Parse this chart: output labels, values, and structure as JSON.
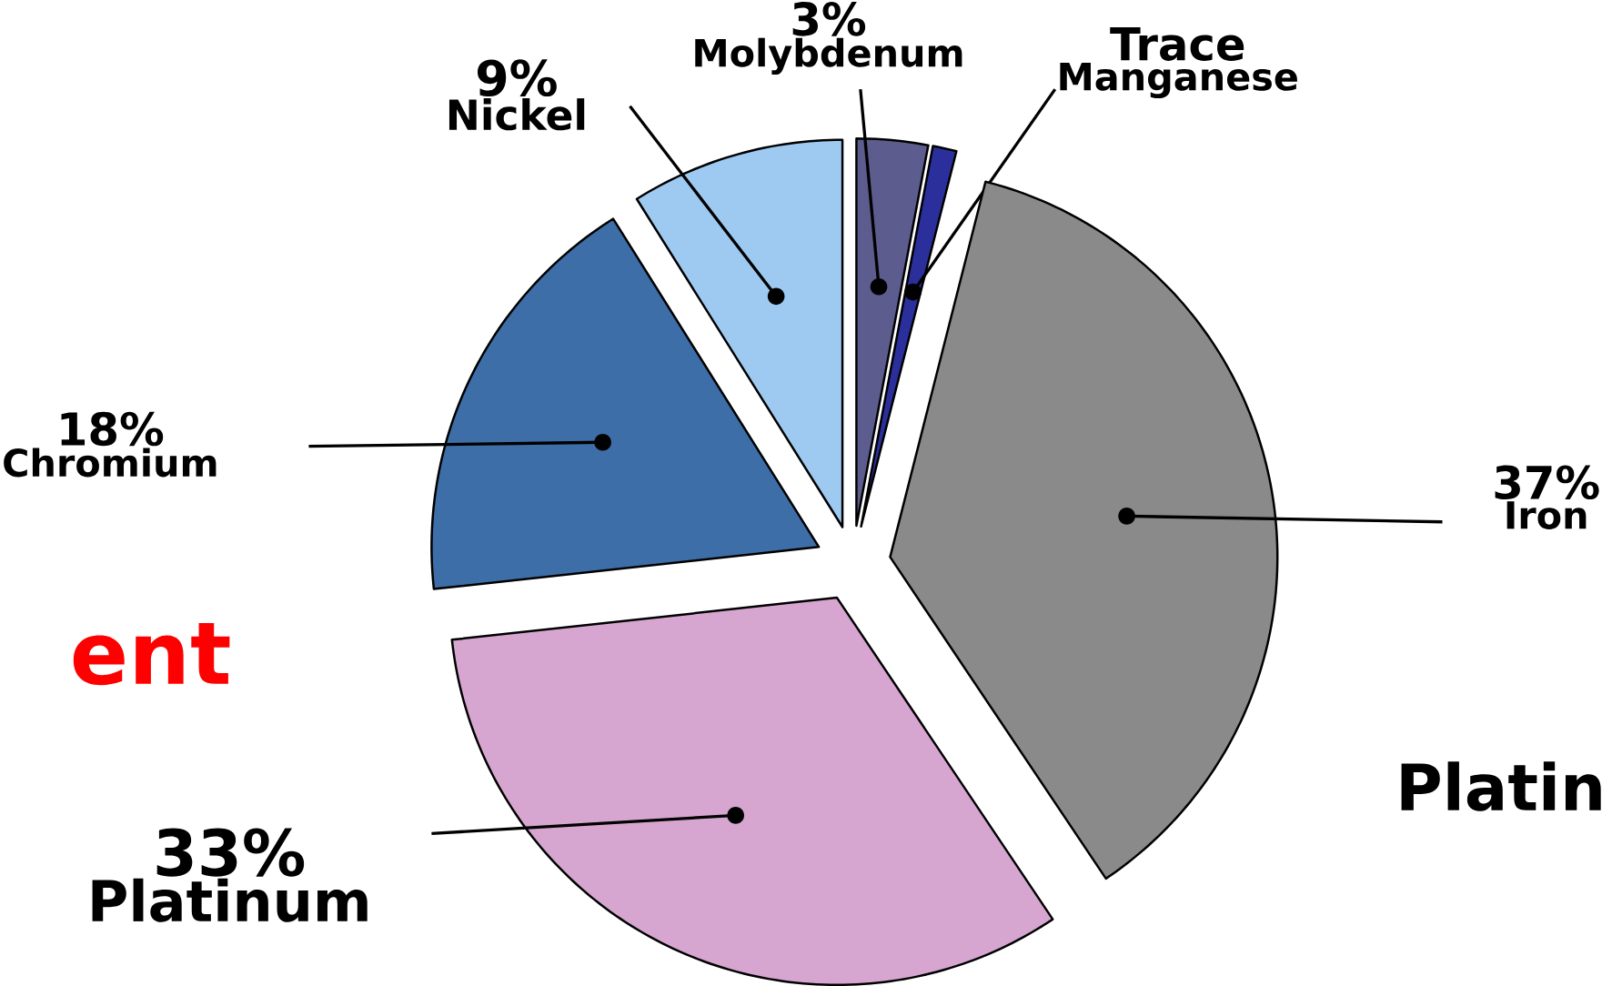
{
  "chart_data": {
    "type": "pie",
    "categories": [
      "Molybdenum",
      "Manganese",
      "Iron",
      "Platinum",
      "Chromium",
      "Nickel"
    ],
    "values": [
      3,
      1,
      37,
      33,
      18,
      9
    ],
    "value_labels": [
      "3%",
      "Trace",
      "37%",
      "33%",
      "18%",
      "9%"
    ],
    "colors": [
      "#5c5c8e",
      "#2b2f9c",
      "#8a8a8a",
      "#d6a6d0",
      "#3d6ea8",
      "#9ecaf2"
    ],
    "annotations": [
      "ent",
      "Platin"
    ]
  }
}
